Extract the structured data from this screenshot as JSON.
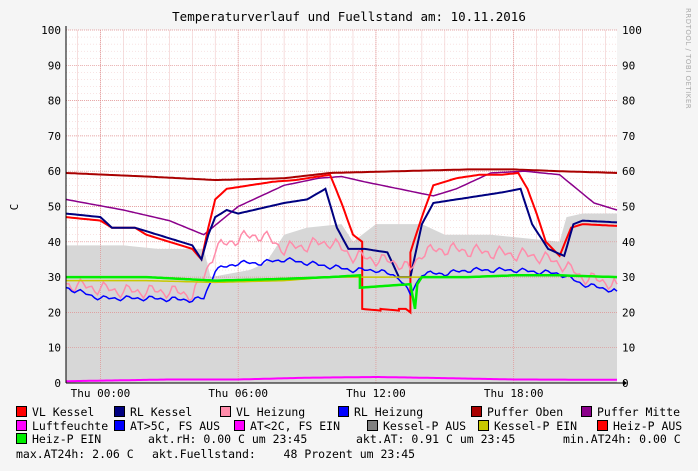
{
  "title": "Temperaturverlauf und Fuellstand am: 10.11.2016",
  "watermark": "RRDTOOL / TOBI OETIKER",
  "colors": {
    "background": "#f5f5f5",
    "plot_bg": "#ffffff",
    "grid_major": "#e09090",
    "grid_minor": "#f0c8c8",
    "fill_gray": "#d7d7d7"
  },
  "legend": [
    {
      "label": "VL Kessel",
      "color": "#ff0000"
    },
    {
      "label": "RL Kessel",
      "color": "#000080"
    },
    {
      "label": "VL Heizung",
      "color": "#ff8caa"
    },
    {
      "label": "RL Heizung",
      "color": "#0000ff"
    },
    {
      "label": "Puffer Oben",
      "color": "#aa0000"
    },
    {
      "label": "Puffer Mitte",
      "color": "#8b008b"
    },
    {
      "label": "Luftfeuchte",
      "color": "#ff00ff"
    },
    {
      "label": "AT>5C, FS AUS",
      "color": "#0000ff"
    },
    {
      "label": "AT<2C, FS EIN",
      "color": "#ff00ff"
    },
    {
      "label": "Kessel-P AUS",
      "color": "#808080"
    },
    {
      "label": "Kessel-P EIN",
      "color": "#c8c800"
    },
    {
      "label": "Heiz-P AUS",
      "color": "#ff0000"
    },
    {
      "label": "Heiz-P EIN",
      "color": "#00ee00"
    }
  ],
  "info": {
    "akt_rh": "akt.rH: 0.00 C um 23:45",
    "akt_at": "akt.AT: 0.91 C um 23:45",
    "min_at": "min.AT24h: 0.00 C",
    "max_at": "max.AT24h: 2.06 C",
    "fuellstand": "akt.Fuellstand:    48 Prozent um 23:45"
  },
  "chart_data": {
    "type": "line",
    "title": "Temperaturverlauf und Fuellstand am: 10.11.2016",
    "ylabel": "C",
    "ylim": [
      0,
      100
    ],
    "yticks": [
      0,
      10,
      20,
      30,
      40,
      50,
      60,
      70,
      80,
      90,
      100
    ],
    "xlim": [
      -1.5,
      22.5
    ],
    "xticks": [
      {
        "h": 0,
        "label": "Thu 00:00"
      },
      {
        "h": 6,
        "label": "Thu 06:00"
      },
      {
        "h": 12,
        "label": "Thu 12:00"
      },
      {
        "h": 18,
        "label": "Thu 18:00"
      }
    ],
    "grid": true,
    "fill_area": {
      "name": "Kessel-P AUS",
      "color": "#d7d7d7",
      "points": [
        [
          -1.5,
          39
        ],
        [
          1,
          39
        ],
        [
          2.5,
          38
        ],
        [
          4.5,
          38
        ],
        [
          4.8,
          30
        ],
        [
          6.5,
          32
        ],
        [
          7.2,
          34
        ],
        [
          8,
          42
        ],
        [
          9,
          44
        ],
        [
          10.5,
          45
        ],
        [
          11,
          40
        ],
        [
          12,
          45
        ],
        [
          13,
          45
        ],
        [
          14,
          45
        ],
        [
          15,
          42
        ],
        [
          17,
          42
        ],
        [
          20,
          40
        ],
        [
          20.3,
          47
        ],
        [
          21,
          48
        ],
        [
          22.5,
          48
        ]
      ]
    },
    "series": [
      {
        "name": "Puffer Oben",
        "color": "#aa0000",
        "width": 2,
        "points": [
          [
            -1.5,
            59.5
          ],
          [
            2,
            58.5
          ],
          [
            5,
            57.5
          ],
          [
            8,
            58
          ],
          [
            10,
            59.5
          ],
          [
            13,
            60
          ],
          [
            16,
            60.5
          ],
          [
            18,
            60.5
          ],
          [
            20,
            60
          ],
          [
            22.5,
            59.5
          ]
        ]
      },
      {
        "name": "Puffer Mitte",
        "color": "#8b008b",
        "width": 1.5,
        "points": [
          [
            -1.5,
            52
          ],
          [
            1,
            49
          ],
          [
            3,
            46
          ],
          [
            4.5,
            42
          ],
          [
            6,
            50
          ],
          [
            8,
            56
          ],
          [
            9.5,
            58
          ],
          [
            10.5,
            58.5
          ],
          [
            11.5,
            57
          ],
          [
            13,
            55
          ],
          [
            14.5,
            53
          ],
          [
            15.5,
            55
          ],
          [
            17,
            59.5
          ],
          [
            18.5,
            60
          ],
          [
            20,
            59
          ],
          [
            21.5,
            51
          ],
          [
            22.5,
            49
          ]
        ]
      },
      {
        "name": "VL Kessel",
        "color": "#ff0000",
        "width": 2,
        "points": [
          [
            -1.5,
            47
          ],
          [
            0,
            46
          ],
          [
            0.5,
            44
          ],
          [
            1.5,
            44
          ],
          [
            2,
            42
          ],
          [
            3,
            40
          ],
          [
            4,
            38
          ],
          [
            4.4,
            35
          ],
          [
            4.7,
            44
          ],
          [
            5,
            52
          ],
          [
            5.5,
            55
          ],
          [
            6.5,
            56
          ],
          [
            7.5,
            57
          ],
          [
            8.5,
            57.5
          ],
          [
            9.5,
            58.5
          ],
          [
            10,
            59
          ],
          [
            10.5,
            51
          ],
          [
            11,
            42
          ],
          [
            11.4,
            40
          ],
          [
            11.4,
            21
          ],
          [
            12.2,
            20.5
          ],
          [
            12.2,
            21
          ],
          [
            13,
            20.5
          ],
          [
            13,
            21
          ],
          [
            13.3,
            21
          ],
          [
            13.5,
            20
          ],
          [
            13.5,
            37
          ],
          [
            14,
            47
          ],
          [
            14.5,
            56
          ],
          [
            15.5,
            58
          ],
          [
            16.5,
            59
          ],
          [
            17.5,
            59
          ],
          [
            18.2,
            59.5
          ],
          [
            18.6,
            55
          ],
          [
            19,
            48
          ],
          [
            19.4,
            40
          ],
          [
            20,
            36
          ],
          [
            20.5,
            44
          ],
          [
            21,
            45
          ],
          [
            22.5,
            44.5
          ]
        ]
      },
      {
        "name": "RL Kessel",
        "color": "#000080",
        "width": 2,
        "points": [
          [
            -1.5,
            48
          ],
          [
            0,
            47
          ],
          [
            0.5,
            44
          ],
          [
            1.5,
            44
          ],
          [
            2,
            43
          ],
          [
            3,
            41
          ],
          [
            4,
            39
          ],
          [
            4.4,
            35
          ],
          [
            4.7,
            42
          ],
          [
            5,
            47
          ],
          [
            5.5,
            49
          ],
          [
            6,
            48
          ],
          [
            7,
            49.5
          ],
          [
            8,
            51
          ],
          [
            9,
            52
          ],
          [
            9.8,
            55
          ],
          [
            10.3,
            44
          ],
          [
            10.8,
            38
          ],
          [
            11.5,
            38
          ],
          [
            12.5,
            37
          ],
          [
            13,
            30
          ],
          [
            13.5,
            30
          ],
          [
            14,
            45
          ],
          [
            14.5,
            51
          ],
          [
            15.5,
            52
          ],
          [
            16.5,
            53
          ],
          [
            17.5,
            54
          ],
          [
            18.3,
            55
          ],
          [
            18.8,
            45
          ],
          [
            19.5,
            38
          ],
          [
            20.2,
            36
          ],
          [
            20.6,
            45
          ],
          [
            21,
            46
          ],
          [
            22.5,
            45.5
          ]
        ]
      },
      {
        "name": "VL Heizung",
        "color": "#ff8caa",
        "width": 1.5,
        "jitter": 2.2,
        "points": [
          [
            -1.5,
            28
          ],
          [
            1,
            26
          ],
          [
            3,
            26
          ],
          [
            4,
            25
          ],
          [
            4.5,
            30
          ],
          [
            5,
            38
          ],
          [
            6,
            41
          ],
          [
            7,
            42
          ],
          [
            8,
            38
          ],
          [
            9,
            39
          ],
          [
            10,
            40
          ],
          [
            11,
            36
          ],
          [
            12,
            35
          ],
          [
            13,
            34
          ],
          [
            13.5,
            32
          ],
          [
            14,
            37
          ],
          [
            15,
            38
          ],
          [
            17,
            37
          ],
          [
            19,
            36
          ],
          [
            20,
            34
          ],
          [
            21,
            30
          ],
          [
            22.5,
            28
          ]
        ]
      },
      {
        "name": "RL Heizung",
        "color": "#0000ff",
        "width": 1.5,
        "jitter": 0.8,
        "points": [
          [
            -1.5,
            27
          ],
          [
            0,
            24
          ],
          [
            2,
            24
          ],
          [
            4,
            23.5
          ],
          [
            4.5,
            24
          ],
          [
            5,
            32
          ],
          [
            6,
            34
          ],
          [
            7,
            34
          ],
          [
            8,
            35
          ],
          [
            9,
            34
          ],
          [
            10,
            33
          ],
          [
            11,
            32
          ],
          [
            12,
            32
          ],
          [
            13,
            30
          ],
          [
            13.5,
            25
          ],
          [
            14,
            31
          ],
          [
            15,
            31
          ],
          [
            16,
            32
          ],
          [
            18,
            32
          ],
          [
            20,
            31
          ],
          [
            21,
            28
          ],
          [
            22.5,
            26
          ]
        ]
      },
      {
        "name": "Kessel-P EIN",
        "color": "#c8c800",
        "width": 1.5,
        "points": [
          [
            -1.5,
            29
          ],
          [
            2,
            29
          ],
          [
            5,
            28.5
          ],
          [
            8,
            29
          ],
          [
            10,
            30
          ],
          [
            12,
            30
          ],
          [
            14,
            30
          ],
          [
            16,
            30
          ],
          [
            18,
            30.5
          ],
          [
            20,
            30.5
          ],
          [
            22.5,
            30
          ]
        ]
      },
      {
        "name": "Heiz-P EIN",
        "color": "#00ee00",
        "width": 2.5,
        "points": [
          [
            -1.5,
            30
          ],
          [
            2,
            30
          ],
          [
            5,
            29
          ],
          [
            8,
            29.5
          ],
          [
            10,
            30
          ],
          [
            11.3,
            30.5
          ],
          [
            11.3,
            27
          ],
          [
            13.5,
            28
          ],
          [
            13.7,
            21
          ],
          [
            13.8,
            28
          ],
          [
            14,
            30
          ],
          [
            16,
            30
          ],
          [
            18,
            30.5
          ],
          [
            20,
            30.5
          ],
          [
            22.5,
            30
          ]
        ]
      },
      {
        "name": "Luftfeuchte",
        "color": "#ff00ff",
        "width": 2,
        "points": [
          [
            -1.5,
            0.5
          ],
          [
            3,
            1
          ],
          [
            6,
            1
          ],
          [
            9,
            1.5
          ],
          [
            12,
            1.7
          ],
          [
            14,
            1.5
          ],
          [
            18,
            1
          ],
          [
            22.5,
            0.9
          ]
        ]
      }
    ]
  }
}
